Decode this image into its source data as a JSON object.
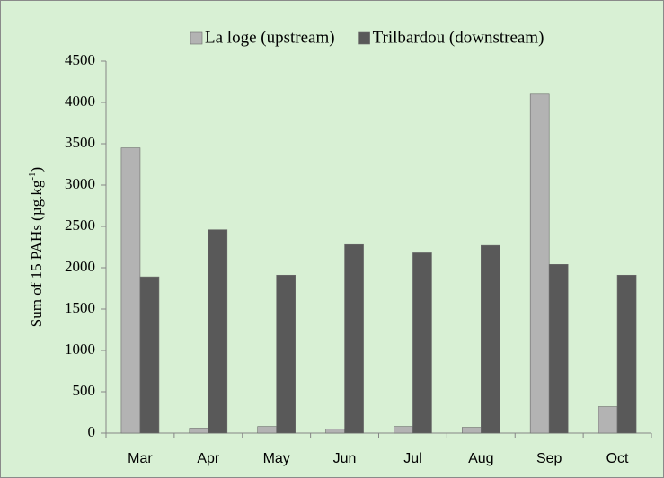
{
  "chart_data": {
    "type": "bar",
    "y_label_parts": [
      "Sum of 15 PAHs (µg.kg",
      "-1",
      ")"
    ],
    "categories": [
      "Mar",
      "Apr",
      "May",
      "Jun",
      "Jul",
      "Aug",
      "Sep",
      "Oct"
    ],
    "series": [
      {
        "name": "La loge (upstream)",
        "color": "#b3b3b3",
        "values": [
          3450,
          60,
          80,
          50,
          80,
          70,
          4100,
          320
        ]
      },
      {
        "name": "Trilbardou (downstream)",
        "color": "#595959",
        "values": [
          1890,
          2460,
          1910,
          2280,
          2180,
          2270,
          2040,
          1910
        ]
      }
    ],
    "ylim": [
      0,
      4500
    ],
    "yticks": [
      0,
      500,
      1000,
      1500,
      2000,
      2500,
      3000,
      3500,
      4000,
      4500
    ],
    "grid": false,
    "legend": "top"
  }
}
